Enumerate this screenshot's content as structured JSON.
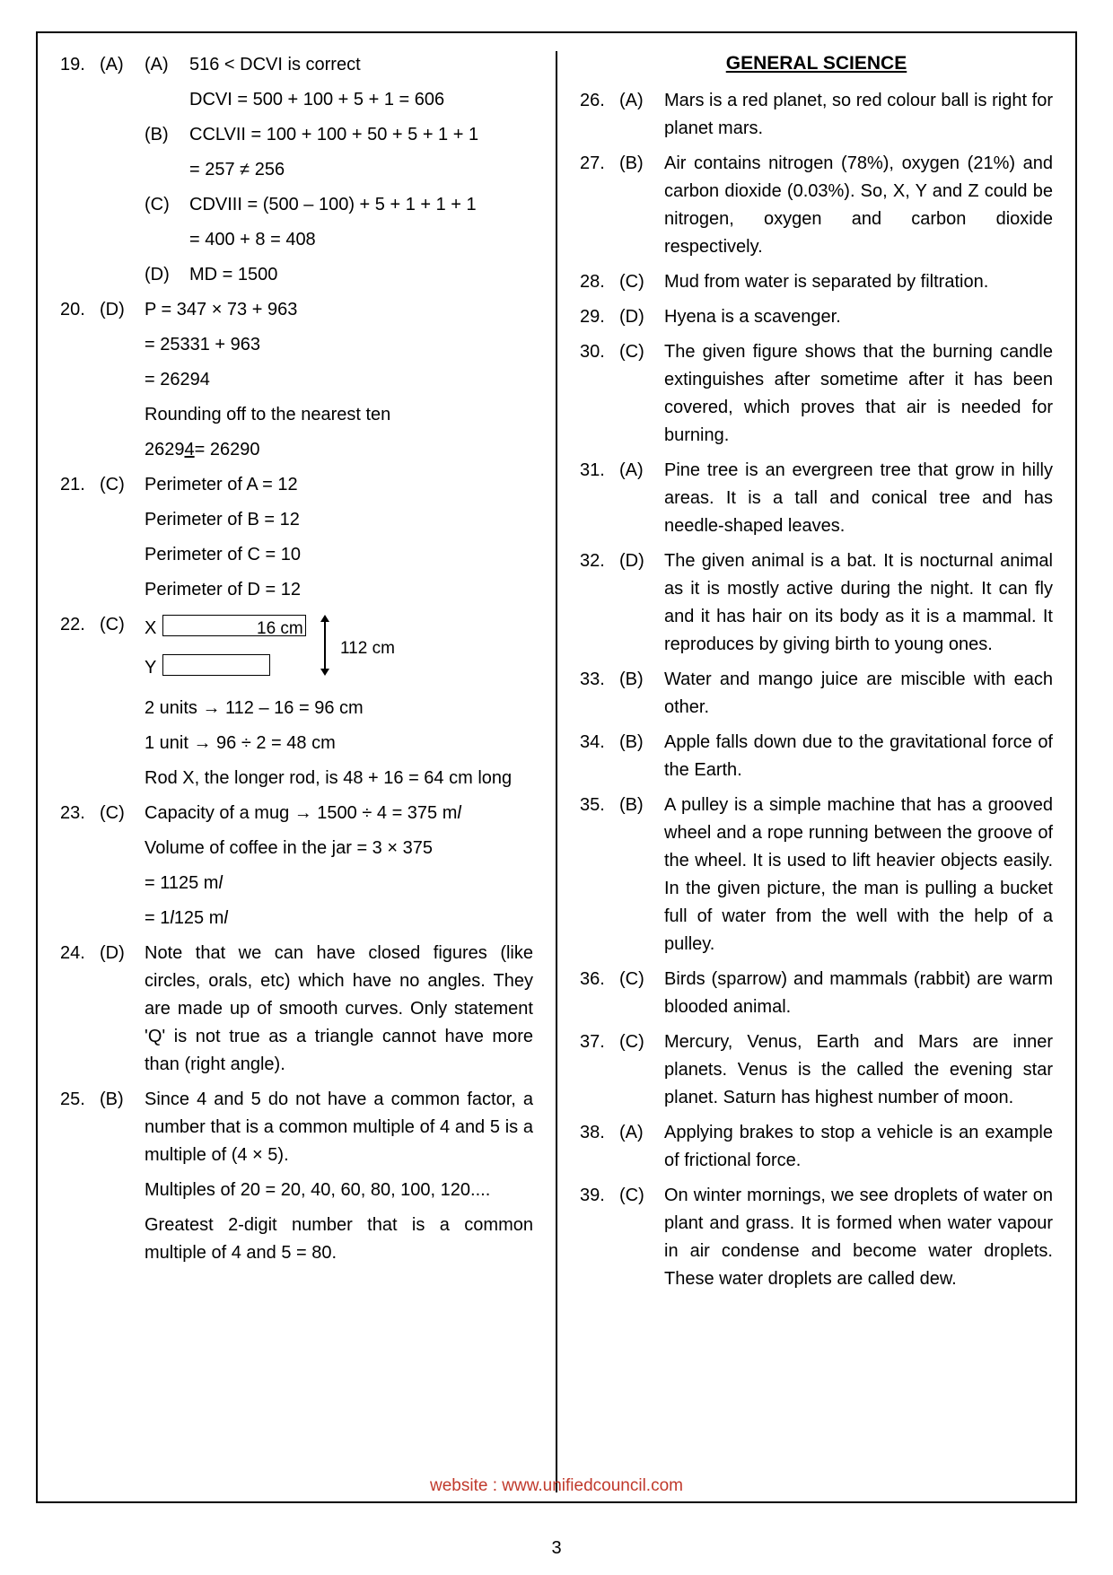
{
  "page_number": "3",
  "website": "website : www.unifiedcouncil.com",
  "section_heading": "GENERAL SCIENCE",
  "left": {
    "q19": {
      "num": "19.",
      "ans": "(A)",
      "a_label": "(A)",
      "a1": "516 < DCVI is correct",
      "a2": "DCVI = 500 + 100 + 5 + 1 = 606",
      "b_label": "(B)",
      "b1": "CCLVII = 100 + 100 + 50 + 5 + 1 + 1",
      "b2": "= 257 ≠ 256",
      "c_label": "(C)",
      "c1": "CDVIII = (500 – 100) + 5 + 1 + 1 + 1",
      "c2": "= 400 + 8 = 408",
      "d_label": "(D)",
      "d1": "MD = 1500"
    },
    "q20": {
      "num": "20.",
      "ans": "(D)",
      "l1": "P = 347 × 73 + 963",
      "l2": "= 25331 + 963",
      "l3": "= 26294",
      "l4": "Rounding off to the nearest ten",
      "l5a": "2629",
      "l5u": "4",
      "l5b": " = 26290"
    },
    "q21": {
      "num": "21.",
      "ans": "(C)",
      "l1": "Perimeter of A = 12",
      "l2": "Perimeter of B = 12",
      "l3": "Perimeter of C = 10",
      "l4": "Perimeter of D = 12"
    },
    "q22": {
      "num": "22.",
      "ans": "(C)",
      "X": "X",
      "Y": "Y",
      "d16": "16 cm",
      "d112": "112 cm",
      "l1": "2 units  →  112 – 16 = 96 cm",
      "l2": "1 unit  →  96 ÷ 2 = 48 cm",
      "l3": "Rod X, the longer rod, is 48 + 16 = 64 cm long"
    },
    "q23": {
      "num": "23.",
      "ans": "(C)",
      "l1": "Capacity of a mug  →  1500 ÷ 4 = 375 m",
      "l2": "Volume of coffee in the jar = 3 × 375",
      "l3": "= 1125 m",
      "l4a": "= 1 ",
      "l4b": " 125 m",
      "ell": "l"
    },
    "q24": {
      "num": "24.",
      "ans": "(D)",
      "body": "Note that we can have closed figures (like circles, orals, etc) which have no angles. They are made up of smooth curves. Only statement 'Q' is not true as a triangle cannot have more than (right angle)."
    },
    "q25": {
      "num": "25.",
      "ans": "(B)",
      "l1": "Since 4 and 5 do not have a common factor, a number that is a common multiple of 4 and 5 is a multiple of (4 × 5).",
      "l2": "Multiples of 20 = 20, 40, 60, 80, 100, 120....",
      "l3": "Greatest 2-digit number that is a common multiple of 4 and 5 = 80."
    }
  },
  "right": {
    "q26": {
      "num": "26.",
      "ans": "(A)",
      "body": "Mars is a red planet, so red colour ball is right for planet mars."
    },
    "q27": {
      "num": "27.",
      "ans": "(B)",
      "body": "Air contains nitrogen (78%), oxygen (21%) and carbon dioxide (0.03%). So, X, Y and Z could be nitrogen, oxygen and carbon dioxide respectively."
    },
    "q28": {
      "num": "28.",
      "ans": "(C)",
      "body": "Mud from water is separated by filtration."
    },
    "q29": {
      "num": "29.",
      "ans": "(D)",
      "body": "Hyena is a scavenger."
    },
    "q30": {
      "num": "30.",
      "ans": "(C)",
      "body": "The given figure shows that the burning candle extinguishes after sometime after it has been covered, which proves that air is needed for burning."
    },
    "q31": {
      "num": "31.",
      "ans": "(A)",
      "body": "Pine tree is an evergreen tree that grow in hilly areas. It is a tall and conical tree and has needle-shaped leaves."
    },
    "q32": {
      "num": "32.",
      "ans": "(D)",
      "body": "The given animal is a bat. It is nocturnal animal as it is mostly active during the night. It can fly and it has hair on its body as it is a mammal. It reproduces by giving birth to young ones."
    },
    "q33": {
      "num": "33.",
      "ans": "(B)",
      "body": "Water and mango juice are miscible with each other."
    },
    "q34": {
      "num": "34.",
      "ans": "(B)",
      "body": "Apple falls down due to the gravitational force of the Earth."
    },
    "q35": {
      "num": "35.",
      "ans": "(B)",
      "body": "A pulley is a simple machine that has a grooved wheel and a rope running between the groove of the wheel. It is used to lift heavier objects easily. In the given picture, the man is pulling a bucket full of water from the well with the help of a pulley."
    },
    "q36": {
      "num": "36.",
      "ans": "(C)",
      "body": "Birds (sparrow) and mammals (rabbit) are warm blooded animal."
    },
    "q37": {
      "num": "37.",
      "ans": "(C)",
      "body": "Mercury, Venus, Earth and Mars are inner planets. Venus is the called the evening star planet. Saturn has highest number of moon."
    },
    "q38": {
      "num": "38.",
      "ans": "(A)",
      "body": "Applying brakes to stop a vehicle is an example of frictional force."
    },
    "q39": {
      "num": "39.",
      "ans": "(C)",
      "body": "On winter mornings, we see droplets of water on plant and grass. It is formed when water vapour in air condense and become water droplets. These water droplets are called dew."
    }
  }
}
